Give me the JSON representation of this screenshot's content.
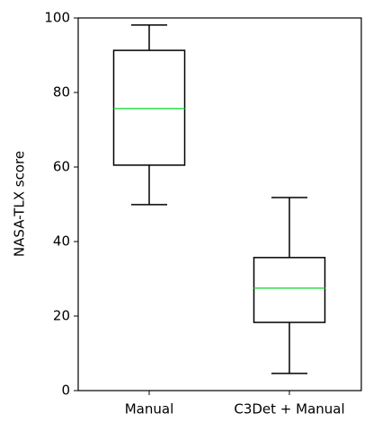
{
  "chart_data": {
    "type": "box",
    "y_label": "NASA-TLX score",
    "categories": [
      "Manual",
      "C3Det + Manual"
    ],
    "boxes": [
      {
        "low": 49.9,
        "q1": 60.5,
        "median": 75.7,
        "q3": 91.3,
        "high": 98.1
      },
      {
        "low": 4.6,
        "q1": 18.3,
        "median": 27.5,
        "q3": 35.7,
        "high": 51.8
      }
    ],
    "color": "#000000",
    "median_color": "#2ee04a",
    "ylim": [
      0,
      100
    ],
    "yticks": [
      0,
      20,
      40,
      60,
      80,
      100
    ],
    "grid": false
  }
}
